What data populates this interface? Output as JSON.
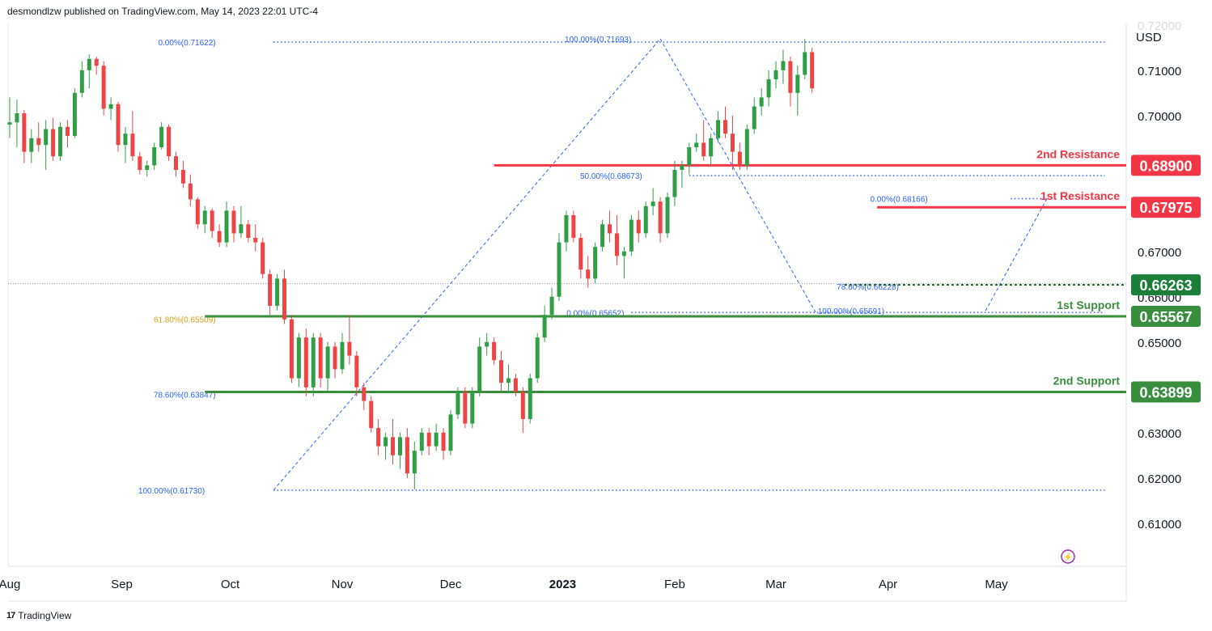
{
  "header": {
    "published": "desmondlzw published on TradingView.com, May 14, 2023 22:01 UTC-4"
  },
  "footer": {
    "brand": "TradingView"
  },
  "colors": {
    "up": "#2f9e44",
    "down": "#ef4444",
    "resistance": "#f23645",
    "support": "#388e3c",
    "fib": "#2962ff",
    "fibGold": "#d4a017",
    "axisText": "#131722"
  },
  "chart_data": {
    "type": "candlestick",
    "currency_label": "USD",
    "ylim": [
      0.6005,
      0.7205
    ],
    "y_ticks": [
      "0.71000",
      "0.70000",
      "0.67000",
      "0.66000",
      "0.65000",
      "0.63000",
      "0.62000",
      "0.61000"
    ],
    "y_tick_values": [
      0.71,
      0.7,
      0.67,
      0.66,
      0.65,
      0.63,
      0.62,
      0.61
    ],
    "top_partial_tick": "0.72000",
    "x_ticks": [
      "Aug",
      "Sep",
      "Oct",
      "Nov",
      "Dec",
      "2023",
      "Feb",
      "Mar",
      "Apr",
      "May"
    ],
    "x_tick_dates": [
      "2022-08-01",
      "2022-09-01",
      "2022-10-01",
      "2022-11-01",
      "2022-12-01",
      "2023-01-01",
      "2023-02-01",
      "2023-03-01",
      "2023-04-01",
      "2023-05-01"
    ],
    "last_price": 0.66263,
    "levels": [
      {
        "label": "2nd Resistance",
        "value": 0.689,
        "value_label": "0.68900",
        "type": "resistance",
        "start": "2022-12-13"
      },
      {
        "label": "1st Resistance",
        "value": 0.67975,
        "value_label": "0.67975",
        "type": "resistance",
        "start": "2023-03-29"
      },
      {
        "label": "",
        "value": 0.66263,
        "value_label": "0.66263",
        "type": "current",
        "start": "2023-03-20"
      },
      {
        "label": "1st Support",
        "value": 0.65567,
        "value_label": "0.65567",
        "type": "support",
        "start": "2022-09-24"
      },
      {
        "label": "2nd Support",
        "value": 0.63899,
        "value_label": "0.63899",
        "type": "support",
        "start": "2022-09-24"
      }
    ],
    "fib_labels": [
      {
        "text": "0.00%(0.71622)",
        "value": 0.71622,
        "date": "2022-09-27"
      },
      {
        "text": "100.00%(0.71693)",
        "value": 0.71693,
        "date": "2023-01-20"
      },
      {
        "text": "50.00%(0.68673)",
        "value": 0.68673,
        "date": "2023-01-23"
      },
      {
        "text": "0.00%(0.65652)",
        "value": 0.65652,
        "date": "2023-01-18"
      },
      {
        "text": "0.00%(0.68166)",
        "value": 0.68166,
        "date": "2023-04-12"
      },
      {
        "text": "78.60%(0.66228)",
        "value": 0.66228,
        "date": "2023-04-04"
      },
      {
        "text": "100.00%(0.65691)",
        "value": 0.65691,
        "date": "2023-03-31"
      },
      {
        "text": "61.80%(0.65509)",
        "value": 0.65509,
        "date": "2022-09-27",
        "gold": true
      },
      {
        "text": "78.60%(0.63847)",
        "value": 0.63847,
        "date": "2022-09-27"
      },
      {
        "text": "100.00%(0.61730)",
        "value": 0.6173,
        "date": "2022-09-24"
      }
    ],
    "fib_lines": [
      {
        "value": 0.71622,
        "from": "2022-10-13",
        "to": "2023-05-31"
      },
      {
        "value": 0.68673,
        "from": "2023-02-05",
        "to": "2023-05-31"
      },
      {
        "value": 0.65652,
        "from": "2023-01-20",
        "to": "2023-05-31"
      },
      {
        "value": 0.6173,
        "from": "2022-10-13",
        "to": "2023-05-31"
      },
      {
        "value": 0.68166,
        "from": "2023-05-05",
        "to": "2023-05-18"
      }
    ],
    "trend_lines": [
      {
        "from": [
          "2022-10-13",
          0.6173
        ],
        "to": [
          "2023-01-28",
          0.71693
        ]
      },
      {
        "from": [
          "2023-01-28",
          0.71693
        ],
        "to": [
          "2023-03-12",
          0.65652
        ]
      },
      {
        "from": [
          "2023-04-28",
          0.65691
        ],
        "to": [
          "2023-05-15",
          0.68166
        ]
      }
    ],
    "candles": [
      {
        "d": "2022-08-01",
        "o": 0.698,
        "h": 0.704,
        "l": 0.695,
        "c": 0.6985
      },
      {
        "d": "2022-08-03",
        "o": 0.6985,
        "h": 0.7035,
        "l": 0.693,
        "c": 0.7005
      },
      {
        "d": "2022-08-05",
        "o": 0.7005,
        "h": 0.7012,
        "l": 0.6895,
        "c": 0.692
      },
      {
        "d": "2022-08-07",
        "o": 0.692,
        "h": 0.697,
        "l": 0.6895,
        "c": 0.695
      },
      {
        "d": "2022-08-09",
        "o": 0.695,
        "h": 0.6985,
        "l": 0.692,
        "c": 0.6935
      },
      {
        "d": "2022-08-11",
        "o": 0.6935,
        "h": 0.699,
        "l": 0.688,
        "c": 0.697
      },
      {
        "d": "2022-08-13",
        "o": 0.697,
        "h": 0.6995,
        "l": 0.69,
        "c": 0.691
      },
      {
        "d": "2022-08-15",
        "o": 0.691,
        "h": 0.6985,
        "l": 0.69,
        "c": 0.6975
      },
      {
        "d": "2022-08-17",
        "o": 0.6975,
        "h": 0.699,
        "l": 0.693,
        "c": 0.6955
      },
      {
        "d": "2022-08-19",
        "o": 0.6955,
        "h": 0.706,
        "l": 0.695,
        "c": 0.705
      },
      {
        "d": "2022-08-21",
        "o": 0.705,
        "h": 0.712,
        "l": 0.704,
        "c": 0.71
      },
      {
        "d": "2022-08-23",
        "o": 0.71,
        "h": 0.7135,
        "l": 0.706,
        "c": 0.7125
      },
      {
        "d": "2022-08-25",
        "o": 0.7125,
        "h": 0.713,
        "l": 0.709,
        "c": 0.711
      },
      {
        "d": "2022-08-27",
        "o": 0.711,
        "h": 0.712,
        "l": 0.7,
        "c": 0.7015
      },
      {
        "d": "2022-08-29",
        "o": 0.7015,
        "h": 0.704,
        "l": 0.699,
        "c": 0.7025
      },
      {
        "d": "2022-08-31",
        "o": 0.7025,
        "h": 0.703,
        "l": 0.692,
        "c": 0.6935
      },
      {
        "d": "2022-09-02",
        "o": 0.6935,
        "h": 0.6975,
        "l": 0.6895,
        "c": 0.696
      },
      {
        "d": "2022-09-04",
        "o": 0.696,
        "h": 0.701,
        "l": 0.69,
        "c": 0.691
      },
      {
        "d": "2022-09-06",
        "o": 0.691,
        "h": 0.692,
        "l": 0.687,
        "c": 0.688
      },
      {
        "d": "2022-09-08",
        "o": 0.688,
        "h": 0.69,
        "l": 0.6865,
        "c": 0.689
      },
      {
        "d": "2022-09-10",
        "o": 0.689,
        "h": 0.694,
        "l": 0.688,
        "c": 0.693
      },
      {
        "d": "2022-09-12",
        "o": 0.693,
        "h": 0.6985,
        "l": 0.6925,
        "c": 0.6975
      },
      {
        "d": "2022-09-14",
        "o": 0.6975,
        "h": 0.698,
        "l": 0.69,
        "c": 0.691
      },
      {
        "d": "2022-09-16",
        "o": 0.691,
        "h": 0.692,
        "l": 0.6865,
        "c": 0.688
      },
      {
        "d": "2022-09-18",
        "o": 0.688,
        "h": 0.69,
        "l": 0.684,
        "c": 0.685
      },
      {
        "d": "2022-09-20",
        "o": 0.685,
        "h": 0.687,
        "l": 0.68,
        "c": 0.6815
      },
      {
        "d": "2022-09-22",
        "o": 0.6815,
        "h": 0.682,
        "l": 0.675,
        "c": 0.676
      },
      {
        "d": "2022-09-24",
        "o": 0.676,
        "h": 0.68,
        "l": 0.674,
        "c": 0.679
      },
      {
        "d": "2022-09-26",
        "o": 0.679,
        "h": 0.6795,
        "l": 0.673,
        "c": 0.6745
      },
      {
        "d": "2022-09-28",
        "o": 0.6745,
        "h": 0.676,
        "l": 0.671,
        "c": 0.672
      },
      {
        "d": "2022-09-30",
        "o": 0.672,
        "h": 0.681,
        "l": 0.671,
        "c": 0.679
      },
      {
        "d": "2022-10-02",
        "o": 0.679,
        "h": 0.68,
        "l": 0.672,
        "c": 0.674
      },
      {
        "d": "2022-10-04",
        "o": 0.674,
        "h": 0.68,
        "l": 0.673,
        "c": 0.676
      },
      {
        "d": "2022-10-06",
        "o": 0.676,
        "h": 0.677,
        "l": 0.672,
        "c": 0.673
      },
      {
        "d": "2022-10-08",
        "o": 0.673,
        "h": 0.676,
        "l": 0.67,
        "c": 0.672
      },
      {
        "d": "2022-10-10",
        "o": 0.672,
        "h": 0.673,
        "l": 0.664,
        "c": 0.665
      },
      {
        "d": "2022-10-12",
        "o": 0.665,
        "h": 0.666,
        "l": 0.656,
        "c": 0.658
      },
      {
        "d": "2022-10-14",
        "o": 0.658,
        "h": 0.665,
        "l": 0.657,
        "c": 0.664
      },
      {
        "d": "2022-10-16",
        "o": 0.664,
        "h": 0.666,
        "l": 0.654,
        "c": 0.655
      },
      {
        "d": "2022-10-18",
        "o": 0.655,
        "h": 0.656,
        "l": 0.641,
        "c": 0.642
      },
      {
        "d": "2022-10-20",
        "o": 0.642,
        "h": 0.652,
        "l": 0.64,
        "c": 0.651
      },
      {
        "d": "2022-10-22",
        "o": 0.651,
        "h": 0.653,
        "l": 0.638,
        "c": 0.64
      },
      {
        "d": "2022-10-24",
        "o": 0.64,
        "h": 0.652,
        "l": 0.638,
        "c": 0.651
      },
      {
        "d": "2022-10-26",
        "o": 0.651,
        "h": 0.652,
        "l": 0.64,
        "c": 0.642
      },
      {
        "d": "2022-10-28",
        "o": 0.642,
        "h": 0.65,
        "l": 0.639,
        "c": 0.649
      },
      {
        "d": "2022-10-30",
        "o": 0.649,
        "h": 0.65,
        "l": 0.642,
        "c": 0.644
      },
      {
        "d": "2022-11-01",
        "o": 0.644,
        "h": 0.652,
        "l": 0.643,
        "c": 0.65
      },
      {
        "d": "2022-11-03",
        "o": 0.65,
        "h": 0.656,
        "l": 0.645,
        "c": 0.647
      },
      {
        "d": "2022-11-05",
        "o": 0.647,
        "h": 0.648,
        "l": 0.638,
        "c": 0.64
      },
      {
        "d": "2022-11-07",
        "o": 0.64,
        "h": 0.641,
        "l": 0.635,
        "c": 0.637
      },
      {
        "d": "2022-11-09",
        "o": 0.637,
        "h": 0.638,
        "l": 0.63,
        "c": 0.631
      },
      {
        "d": "2022-11-11",
        "o": 0.631,
        "h": 0.633,
        "l": 0.625,
        "c": 0.627
      },
      {
        "d": "2022-11-13",
        "o": 0.627,
        "h": 0.63,
        "l": 0.624,
        "c": 0.629
      },
      {
        "d": "2022-11-15",
        "o": 0.629,
        "h": 0.633,
        "l": 0.623,
        "c": 0.625
      },
      {
        "d": "2022-11-17",
        "o": 0.625,
        "h": 0.63,
        "l": 0.622,
        "c": 0.629
      },
      {
        "d": "2022-11-19",
        "o": 0.629,
        "h": 0.631,
        "l": 0.62,
        "c": 0.621
      },
      {
        "d": "2022-11-21",
        "o": 0.621,
        "h": 0.628,
        "l": 0.6175,
        "c": 0.626
      },
      {
        "d": "2022-11-23",
        "o": 0.626,
        "h": 0.631,
        "l": 0.625,
        "c": 0.63
      },
      {
        "d": "2022-11-25",
        "o": 0.63,
        "h": 0.631,
        "l": 0.625,
        "c": 0.627
      },
      {
        "d": "2022-11-27",
        "o": 0.627,
        "h": 0.632,
        "l": 0.626,
        "c": 0.63
      },
      {
        "d": "2022-11-29",
        "o": 0.63,
        "h": 0.631,
        "l": 0.624,
        "c": 0.626
      },
      {
        "d": "2022-12-01",
        "o": 0.626,
        "h": 0.635,
        "l": 0.625,
        "c": 0.634
      },
      {
        "d": "2022-12-03",
        "o": 0.634,
        "h": 0.64,
        "l": 0.633,
        "c": 0.639
      },
      {
        "d": "2022-12-05",
        "o": 0.639,
        "h": 0.64,
        "l": 0.631,
        "c": 0.632
      },
      {
        "d": "2022-12-07",
        "o": 0.632,
        "h": 0.64,
        "l": 0.631,
        "c": 0.639
      },
      {
        "d": "2022-12-09",
        "o": 0.639,
        "h": 0.651,
        "l": 0.638,
        "c": 0.649
      },
      {
        "d": "2022-12-11",
        "o": 0.649,
        "h": 0.652,
        "l": 0.647,
        "c": 0.65
      },
      {
        "d": "2022-12-13",
        "o": 0.65,
        "h": 0.651,
        "l": 0.645,
        "c": 0.646
      },
      {
        "d": "2022-12-15",
        "o": 0.646,
        "h": 0.648,
        "l": 0.639,
        "c": 0.641
      },
      {
        "d": "2022-12-17",
        "o": 0.641,
        "h": 0.645,
        "l": 0.639,
        "c": 0.642
      },
      {
        "d": "2022-12-19",
        "o": 0.642,
        "h": 0.643,
        "l": 0.638,
        "c": 0.639
      },
      {
        "d": "2022-12-21",
        "o": 0.639,
        "h": 0.64,
        "l": 0.63,
        "c": 0.633
      },
      {
        "d": "2022-12-23",
        "o": 0.633,
        "h": 0.643,
        "l": 0.632,
        "c": 0.642
      },
      {
        "d": "2022-12-25",
        "o": 0.642,
        "h": 0.652,
        "l": 0.641,
        "c": 0.651
      },
      {
        "d": "2022-12-27",
        "o": 0.651,
        "h": 0.658,
        "l": 0.65,
        "c": 0.656
      },
      {
        "d": "2022-12-29",
        "o": 0.656,
        "h": 0.662,
        "l": 0.655,
        "c": 0.66
      },
      {
        "d": "2022-12-31",
        "o": 0.66,
        "h": 0.674,
        "l": 0.659,
        "c": 0.672
      },
      {
        "d": "2023-01-02",
        "o": 0.672,
        "h": 0.679,
        "l": 0.67,
        "c": 0.678
      },
      {
        "d": "2023-01-04",
        "o": 0.678,
        "h": 0.679,
        "l": 0.672,
        "c": 0.673
      },
      {
        "d": "2023-01-06",
        "o": 0.673,
        "h": 0.674,
        "l": 0.664,
        "c": 0.666
      },
      {
        "d": "2023-01-08",
        "o": 0.666,
        "h": 0.669,
        "l": 0.662,
        "c": 0.664
      },
      {
        "d": "2023-01-10",
        "o": 0.664,
        "h": 0.672,
        "l": 0.663,
        "c": 0.671
      },
      {
        "d": "2023-01-12",
        "o": 0.671,
        "h": 0.677,
        "l": 0.67,
        "c": 0.676
      },
      {
        "d": "2023-01-14",
        "o": 0.676,
        "h": 0.679,
        "l": 0.672,
        "c": 0.674
      },
      {
        "d": "2023-01-16",
        "o": 0.674,
        "h": 0.678,
        "l": 0.667,
        "c": 0.669
      },
      {
        "d": "2023-01-18",
        "o": 0.669,
        "h": 0.671,
        "l": 0.664,
        "c": 0.67
      },
      {
        "d": "2023-01-20",
        "o": 0.67,
        "h": 0.678,
        "l": 0.669,
        "c": 0.677
      },
      {
        "d": "2023-01-22",
        "o": 0.677,
        "h": 0.679,
        "l": 0.672,
        "c": 0.674
      },
      {
        "d": "2023-01-24",
        "o": 0.674,
        "h": 0.681,
        "l": 0.673,
        "c": 0.68
      },
      {
        "d": "2023-01-26",
        "o": 0.68,
        "h": 0.684,
        "l": 0.678,
        "c": 0.681
      },
      {
        "d": "2023-01-28",
        "o": 0.681,
        "h": 0.682,
        "l": 0.672,
        "c": 0.674
      },
      {
        "d": "2023-01-30",
        "o": 0.674,
        "h": 0.683,
        "l": 0.673,
        "c": 0.682
      },
      {
        "d": "2023-02-01",
        "o": 0.682,
        "h": 0.69,
        "l": 0.68,
        "c": 0.688
      },
      {
        "d": "2023-02-03",
        "o": 0.688,
        "h": 0.69,
        "l": 0.684,
        "c": 0.689
      },
      {
        "d": "2023-02-05",
        "o": 0.689,
        "h": 0.694,
        "l": 0.687,
        "c": 0.693
      },
      {
        "d": "2023-02-07",
        "o": 0.693,
        "h": 0.696,
        "l": 0.692,
        "c": 0.694
      },
      {
        "d": "2023-02-09",
        "o": 0.694,
        "h": 0.699,
        "l": 0.69,
        "c": 0.691
      },
      {
        "d": "2023-02-11",
        "o": 0.691,
        "h": 0.696,
        "l": 0.689,
        "c": 0.695
      },
      {
        "d": "2023-02-13",
        "o": 0.695,
        "h": 0.701,
        "l": 0.694,
        "c": 0.699
      },
      {
        "d": "2023-02-15",
        "o": 0.699,
        "h": 0.702,
        "l": 0.695,
        "c": 0.696
      },
      {
        "d": "2023-02-17",
        "o": 0.696,
        "h": 0.7,
        "l": 0.688,
        "c": 0.692
      },
      {
        "d": "2023-02-19",
        "o": 0.692,
        "h": 0.694,
        "l": 0.688,
        "c": 0.689
      },
      {
        "d": "2023-02-21",
        "o": 0.689,
        "h": 0.698,
        "l": 0.688,
        "c": 0.697
      },
      {
        "d": "2023-02-23",
        "o": 0.697,
        "h": 0.704,
        "l": 0.696,
        "c": 0.702
      },
      {
        "d": "2023-02-25",
        "o": 0.702,
        "h": 0.706,
        "l": 0.7,
        "c": 0.704
      },
      {
        "d": "2023-02-27",
        "o": 0.704,
        "h": 0.71,
        "l": 0.702,
        "c": 0.708
      },
      {
        "d": "2023-03-01",
        "o": 0.708,
        "h": 0.712,
        "l": 0.706,
        "c": 0.71
      },
      {
        "d": "2023-03-03",
        "o": 0.71,
        "h": 0.7145,
        "l": 0.707,
        "c": 0.712
      },
      {
        "d": "2023-03-05",
        "o": 0.712,
        "h": 0.713,
        "l": 0.702,
        "c": 0.705
      },
      {
        "d": "2023-03-07",
        "o": 0.705,
        "h": 0.711,
        "l": 0.7,
        "c": 0.709
      },
      {
        "d": "2023-03-09",
        "o": 0.709,
        "h": 0.7169,
        "l": 0.708,
        "c": 0.714
      },
      {
        "d": "2023-03-11",
        "o": 0.714,
        "h": 0.715,
        "l": 0.705,
        "c": 0.706
      }
    ]
  }
}
